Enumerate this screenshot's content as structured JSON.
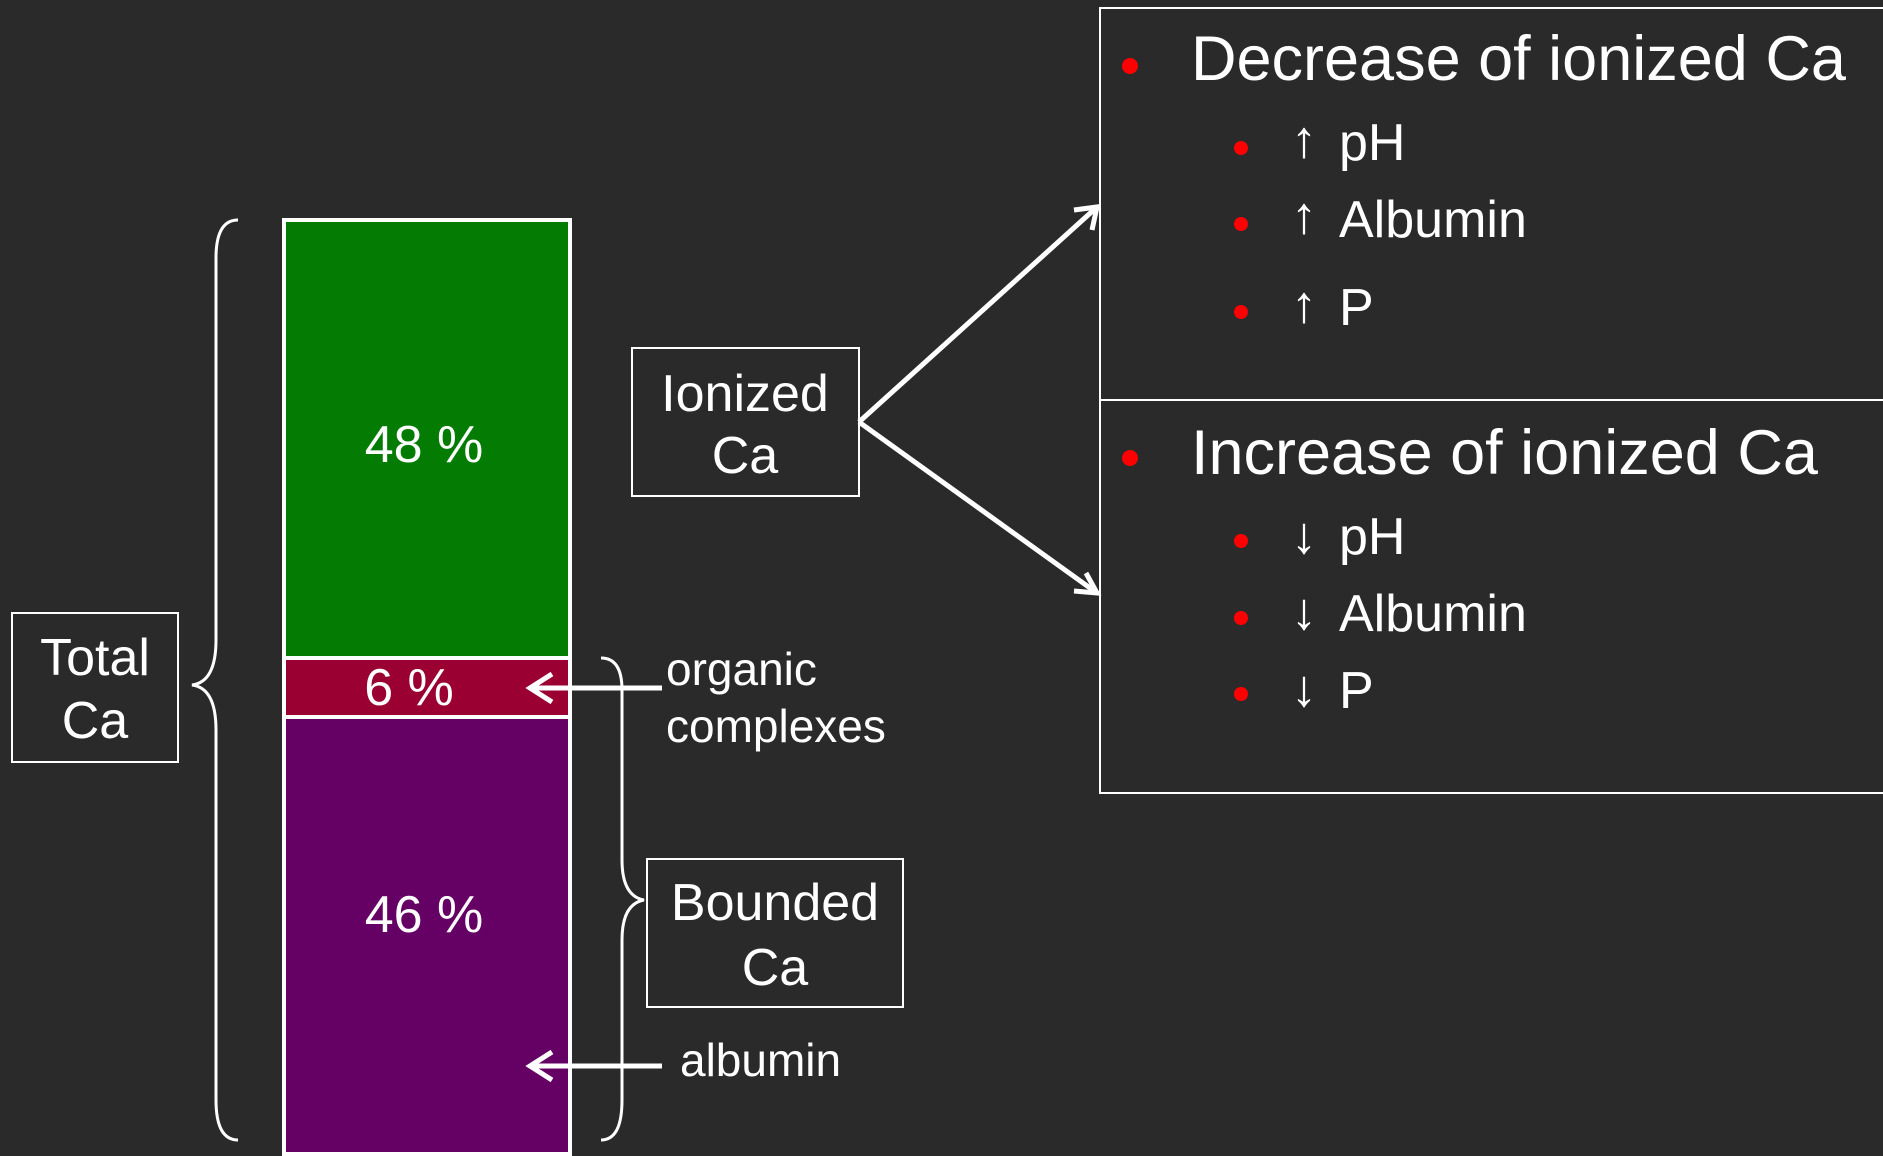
{
  "colors": {
    "background": "#2a2a2a",
    "ionized": "#047c04",
    "organic": "#9a0032",
    "albumin_bound": "#650065",
    "bullet": "#ff0000",
    "lines": "#ffffff"
  },
  "bar": {
    "ionized_label": "48 %",
    "organic_label": "6 %",
    "albumin_label": "46 %"
  },
  "total_box": {
    "line1": "Total",
    "line2": "Ca"
  },
  "ionized_box": {
    "line1": "Ionized",
    "line2": "Ca"
  },
  "bounded_box": {
    "line1": "Bounded",
    "line2": "Ca"
  },
  "labels": {
    "organic_line1": "organic",
    "organic_line2": "complexes",
    "albumin": "albumin"
  },
  "decrease_panel": {
    "heading": "Decrease of ionized Ca",
    "items": [
      {
        "arrow": "↑",
        "label": "pH"
      },
      {
        "arrow": "↑",
        "label": "Albumin"
      },
      {
        "arrow": "↑",
        "label": "P"
      }
    ]
  },
  "increase_panel": {
    "heading": "Increase of ionized Ca",
    "items": [
      {
        "arrow": "↓",
        "label": "pH"
      },
      {
        "arrow": "↓",
        "label": "Albumin"
      },
      {
        "arrow": "↓",
        "label": "P"
      }
    ]
  }
}
